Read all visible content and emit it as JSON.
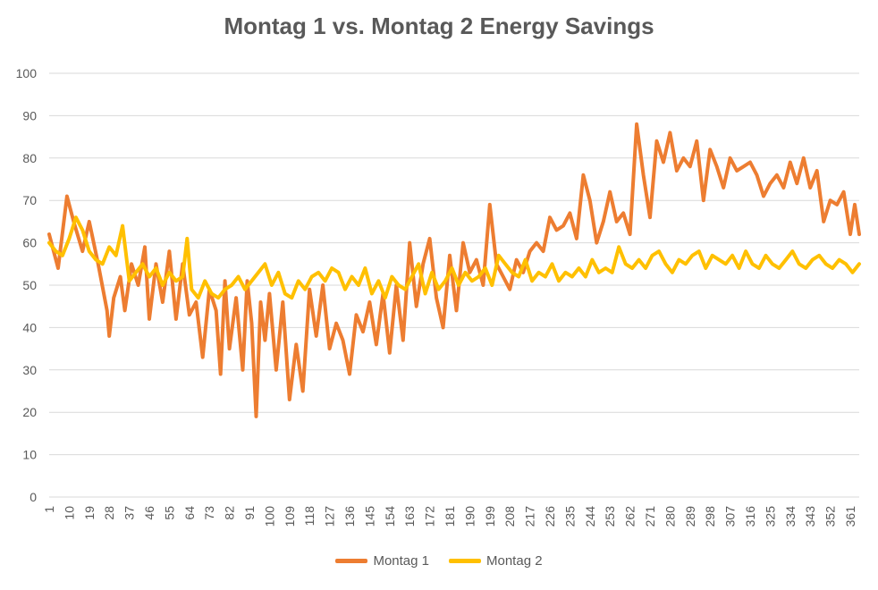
{
  "chart_data": {
    "type": "line",
    "title": "Montag 1 vs. Montag 2 Energy Savings",
    "xlabel": "",
    "ylabel": "",
    "ylim": [
      0,
      100
    ],
    "yticks": [
      0,
      10,
      20,
      30,
      40,
      50,
      60,
      70,
      80,
      90,
      100
    ],
    "x_start": 1,
    "x_end": 365,
    "xticks": [
      1,
      10,
      19,
      28,
      37,
      46,
      55,
      64,
      73,
      82,
      91,
      100,
      109,
      118,
      127,
      136,
      145,
      154,
      163,
      172,
      181,
      190,
      199,
      208,
      217,
      226,
      235,
      244,
      253,
      262,
      271,
      280,
      289,
      298,
      307,
      316,
      325,
      334,
      343,
      352,
      361
    ],
    "grid": true,
    "legend_position": "bottom",
    "series_style": [
      {
        "color": "#ED7D31"
      },
      {
        "color": "#FFC000"
      }
    ],
    "series": [
      {
        "name": "Montag 1",
        "x": [
          1,
          5,
          9,
          12,
          16,
          19,
          23,
          27,
          28,
          30,
          33,
          35,
          38,
          41,
          44,
          46,
          49,
          52,
          55,
          58,
          61,
          64,
          67,
          70,
          73,
          76,
          78,
          80,
          82,
          85,
          88,
          90,
          92,
          94,
          96,
          98,
          100,
          103,
          106,
          109,
          112,
          115,
          118,
          121,
          124,
          127,
          130,
          133,
          136,
          139,
          142,
          145,
          148,
          151,
          154,
          157,
          160,
          163,
          166,
          169,
          172,
          175,
          178,
          181,
          184,
          187,
          190,
          193,
          196,
          199,
          202,
          205,
          208,
          211,
          214,
          217,
          220,
          223,
          226,
          229,
          232,
          235,
          238,
          241,
          244,
          247,
          250,
          253,
          256,
          259,
          262,
          265,
          268,
          271,
          274,
          277,
          280,
          283,
          286,
          289,
          292,
          295,
          298,
          301,
          304,
          307,
          310,
          313,
          316,
          319,
          322,
          325,
          328,
          331,
          334,
          337,
          340,
          343,
          346,
          349,
          352,
          355,
          358,
          361,
          363,
          365
        ],
        "values": [
          62,
          54,
          71,
          65,
          58,
          65,
          55,
          44,
          38,
          47,
          52,
          44,
          55,
          50,
          59,
          42,
          55,
          46,
          58,
          42,
          55,
          43,
          46,
          33,
          49,
          44,
          29,
          51,
          35,
          47,
          30,
          51,
          41,
          19,
          46,
          37,
          48,
          30,
          46,
          23,
          36,
          25,
          49,
          38,
          50,
          35,
          41,
          37,
          29,
          43,
          39,
          46,
          36,
          48,
          34,
          50,
          37,
          60,
          45,
          55,
          61,
          47,
          40,
          57,
          44,
          60,
          53,
          56,
          50,
          69,
          55,
          52,
          49,
          56,
          53,
          58,
          60,
          58,
          66,
          63,
          64,
          67,
          61,
          76,
          70,
          60,
          65,
          72,
          65,
          67,
          62,
          88,
          76,
          66,
          84,
          79,
          86,
          77,
          80,
          78,
          84,
          70,
          82,
          78,
          73,
          80,
          77,
          78,
          79,
          76,
          71,
          74,
          76,
          73,
          79,
          74,
          80,
          73,
          77,
          65,
          70,
          69,
          72,
          62,
          69,
          62
        ]
      },
      {
        "name": "Montag 2",
        "x": [
          1,
          4,
          7,
          10,
          13,
          16,
          19,
          22,
          25,
          28,
          31,
          34,
          37,
          40,
          43,
          46,
          49,
          52,
          55,
          58,
          61,
          63,
          65,
          68,
          71,
          74,
          77,
          80,
          83,
          86,
          89,
          92,
          95,
          98,
          101,
          104,
          107,
          110,
          113,
          116,
          119,
          122,
          125,
          128,
          131,
          134,
          137,
          140,
          143,
          146,
          149,
          152,
          155,
          158,
          161,
          164,
          167,
          170,
          173,
          176,
          179,
          182,
          185,
          188,
          191,
          194,
          197,
          200,
          203,
          206,
          209,
          212,
          215,
          218,
          221,
          224,
          227,
          230,
          233,
          236,
          239,
          242,
          245,
          248,
          251,
          254,
          257,
          260,
          263,
          266,
          269,
          272,
          275,
          278,
          281,
          284,
          287,
          290,
          293,
          296,
          299,
          302,
          305,
          308,
          311,
          314,
          317,
          320,
          323,
          326,
          329,
          332,
          335,
          338,
          341,
          344,
          347,
          350,
          353,
          356,
          359,
          362,
          365
        ],
        "values": [
          60,
          58,
          57,
          61,
          66,
          63,
          58,
          56,
          55,
          59,
          57,
          64,
          51,
          53,
          55,
          52,
          54,
          50,
          53,
          51,
          52,
          61,
          49,
          47,
          51,
          48,
          47,
          49,
          50,
          52,
          49,
          51,
          53,
          55,
          50,
          53,
          48,
          47,
          51,
          49,
          52,
          53,
          51,
          54,
          53,
          49,
          52,
          50,
          54,
          48,
          51,
          47,
          52,
          50,
          49,
          52,
          55,
          48,
          53,
          49,
          51,
          54,
          50,
          53,
          51,
          52,
          54,
          50,
          57,
          55,
          53,
          52,
          56,
          51,
          53,
          52,
          55,
          51,
          53,
          52,
          54,
          52,
          56,
          53,
          54,
          53,
          59,
          55,
          54,
          56,
          54,
          57,
          58,
          55,
          53,
          56,
          55,
          57,
          58,
          54,
          57,
          56,
          55,
          57,
          54,
          58,
          55,
          54,
          57,
          55,
          54,
          56,
          58,
          55,
          54,
          56,
          57,
          55,
          54,
          56,
          55,
          53,
          55
        ]
      }
    ]
  }
}
